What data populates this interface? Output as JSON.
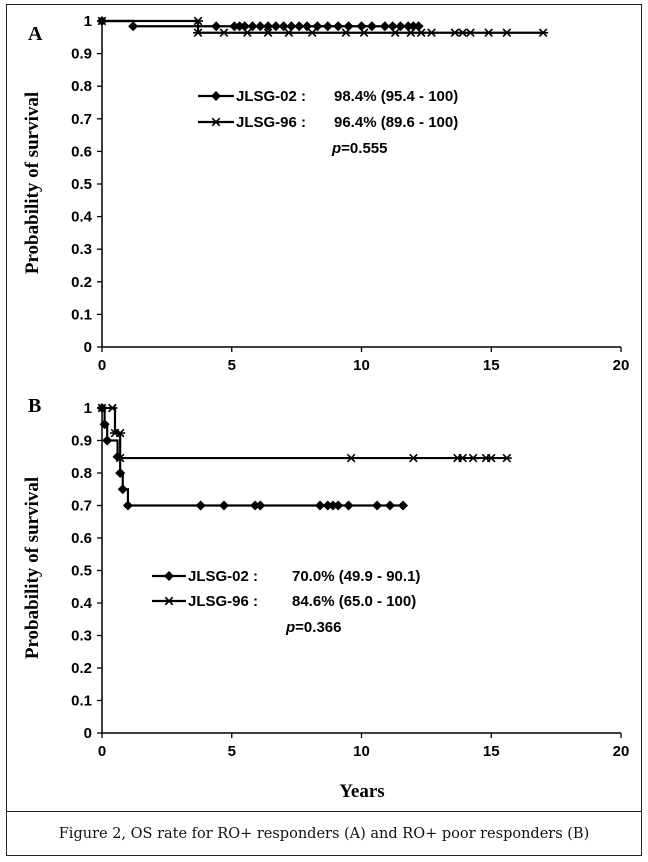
{
  "caption": "Figure 2, OS rate for RO+ responders (A) and RO+ poor responders (B)",
  "colors": {
    "line": "#000000",
    "frame": "#222222"
  },
  "chart_data": [
    {
      "type": "line",
      "panel": "A",
      "ylabel": "Probability of survival",
      "xlabel": "",
      "xlim": [
        0,
        20
      ],
      "ylim": [
        0,
        1
      ],
      "xticks": [
        "0",
        "5",
        "10",
        "15",
        "20"
      ],
      "yticks": [
        "0",
        "0.1",
        "0.2",
        "0.3",
        "0.4",
        "0.5",
        "0.6",
        "0.7",
        "0.8",
        "0.9",
        "1"
      ],
      "series": [
        {
          "name": "JLSG-02",
          "marker": "diamond",
          "legend": "JLSG-02 :",
          "stat": "98.4% (95.4 - 100)",
          "steps": [
            [
              0,
              1.0
            ],
            [
              1.2,
              0.984
            ],
            [
              12.2,
              0.984
            ]
          ],
          "censors": [
            [
              0,
              1.0
            ],
            [
              1.2,
              0.984
            ],
            [
              4.4,
              0.984
            ],
            [
              5.1,
              0.984
            ],
            [
              5.3,
              0.984
            ],
            [
              5.5,
              0.984
            ],
            [
              5.8,
              0.984
            ],
            [
              6.1,
              0.984
            ],
            [
              6.4,
              0.984
            ],
            [
              6.7,
              0.984
            ],
            [
              7.0,
              0.984
            ],
            [
              7.3,
              0.984
            ],
            [
              7.6,
              0.984
            ],
            [
              7.9,
              0.984
            ],
            [
              8.3,
              0.984
            ],
            [
              8.7,
              0.984
            ],
            [
              9.1,
              0.984
            ],
            [
              9.5,
              0.984
            ],
            [
              10.0,
              0.984
            ],
            [
              10.4,
              0.984
            ],
            [
              10.9,
              0.984
            ],
            [
              11.2,
              0.984
            ],
            [
              11.5,
              0.984
            ],
            [
              11.8,
              0.984
            ],
            [
              12.0,
              0.984
            ],
            [
              12.2,
              0.984
            ]
          ]
        },
        {
          "name": "JLSG-96",
          "marker": "star",
          "legend": "JLSG-96 :",
          "stat": "96.4% (89.6 - 100)",
          "steps": [
            [
              0,
              1.0
            ],
            [
              3.7,
              0.964
            ],
            [
              17.0,
              0.964
            ]
          ],
          "censors": [
            [
              0,
              1.0
            ],
            [
              3.7,
              1.0
            ],
            [
              3.7,
              0.964
            ],
            [
              4.7,
              0.964
            ],
            [
              5.6,
              0.964
            ],
            [
              6.4,
              0.964
            ],
            [
              7.2,
              0.964
            ],
            [
              8.1,
              0.964
            ],
            [
              9.4,
              0.964
            ],
            [
              10.1,
              0.964
            ],
            [
              11.3,
              0.964
            ],
            [
              11.9,
              0.964
            ],
            [
              12.3,
              0.964
            ],
            [
              12.7,
              0.964
            ],
            [
              13.6,
              0.964
            ],
            [
              13.9,
              0.964
            ],
            [
              14.2,
              0.964
            ],
            [
              14.9,
              0.964
            ],
            [
              15.6,
              0.964
            ],
            [
              17.0,
              0.964
            ]
          ]
        }
      ],
      "annotation": "=0.555",
      "annotation_p": "p"
    },
    {
      "type": "line",
      "panel": "B",
      "ylabel": "Probability of survival",
      "xlabel": "Years",
      "xlim": [
        0,
        20
      ],
      "ylim": [
        0,
        1
      ],
      "xticks": [
        "0",
        "5",
        "10",
        "15",
        "20"
      ],
      "yticks": [
        "0",
        "0.1",
        "0.2",
        "0.3",
        "0.4",
        "0.5",
        "0.6",
        "0.7",
        "0.8",
        "0.9",
        "1"
      ],
      "series": [
        {
          "name": "JLSG-02",
          "marker": "diamond",
          "legend": "JLSG-02 :",
          "stat": "70.0% (49.9 - 90.1)",
          "steps": [
            [
              0,
              1.0
            ],
            [
              0.1,
              0.95
            ],
            [
              0.2,
              0.9
            ],
            [
              0.6,
              0.85
            ],
            [
              0.7,
              0.8
            ],
            [
              0.8,
              0.75
            ],
            [
              1.0,
              0.7
            ],
            [
              11.6,
              0.7
            ]
          ],
          "censors": [
            [
              0,
              1.0
            ],
            [
              0.1,
              0.95
            ],
            [
              0.2,
              0.9
            ],
            [
              0.6,
              0.85
            ],
            [
              0.7,
              0.8
            ],
            [
              0.8,
              0.75
            ],
            [
              1.0,
              0.7
            ],
            [
              3.8,
              0.7
            ],
            [
              4.7,
              0.7
            ],
            [
              5.9,
              0.7
            ],
            [
              6.1,
              0.7
            ],
            [
              8.4,
              0.7
            ],
            [
              8.7,
              0.7
            ],
            [
              8.9,
              0.7
            ],
            [
              9.1,
              0.7
            ],
            [
              9.5,
              0.7
            ],
            [
              10.6,
              0.7
            ],
            [
              11.1,
              0.7
            ],
            [
              11.6,
              0.7
            ]
          ]
        },
        {
          "name": "JLSG-96",
          "marker": "star",
          "legend": "JLSG-96 :",
          "stat": "84.6% (65.0 - 100)",
          "steps": [
            [
              0,
              1.0
            ],
            [
              0.5,
              0.923
            ],
            [
              0.7,
              0.846
            ],
            [
              15.6,
              0.846
            ]
          ],
          "censors": [
            [
              0,
              1.0
            ],
            [
              0.4,
              1.0
            ],
            [
              0.5,
              0.923
            ],
            [
              0.7,
              0.923
            ],
            [
              0.7,
              0.846
            ],
            [
              9.6,
              0.846
            ],
            [
              12.0,
              0.846
            ],
            [
              13.7,
              0.846
            ],
            [
              13.9,
              0.846
            ],
            [
              14.3,
              0.846
            ],
            [
              14.8,
              0.846
            ],
            [
              15.0,
              0.846
            ],
            [
              15.6,
              0.846
            ]
          ]
        }
      ],
      "annotation": "=0.366",
      "annotation_p": "p"
    }
  ]
}
